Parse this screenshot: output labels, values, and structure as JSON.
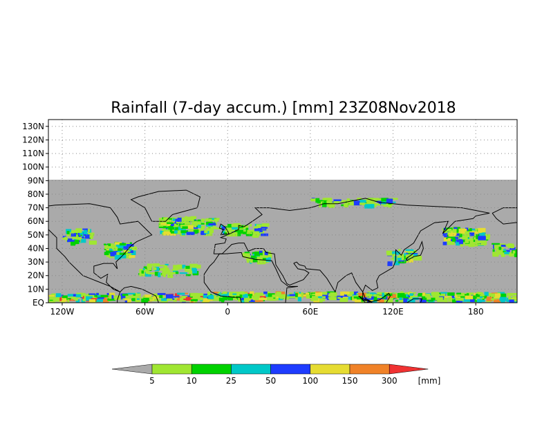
{
  "title": "Rainfall (7-day accum.) [mm] 23Z08Nov2018",
  "map": {
    "projection": "cylindrical",
    "lon_range": [
      -130,
      210
    ],
    "lat_range": [
      0,
      135
    ],
    "data_lat_max": 90,
    "background_color": "#aaaaaa",
    "lat_ticks": [
      "EQ",
      "10N",
      "20N",
      "30N",
      "40N",
      "50N",
      "60N",
      "70N",
      "80N",
      "90N",
      "100N",
      "110N",
      "120N",
      "130N"
    ],
    "lon_ticks": [
      "120W",
      "60W",
      "0",
      "60E",
      "120E",
      "180",
      "120W"
    ],
    "lon_tick_values": [
      -120,
      -60,
      0,
      60,
      120,
      180,
      240
    ]
  },
  "colorbar": {
    "unit": "[mm]",
    "thresholds": [
      "5",
      "10",
      "25",
      "50",
      "100",
      "150",
      "300"
    ],
    "colors": [
      "#aaaaaa",
      "#a0e632",
      "#00d200",
      "#00c8c8",
      "#1e3cff",
      "#e6dc32",
      "#f08228",
      "#f03232"
    ]
  }
}
